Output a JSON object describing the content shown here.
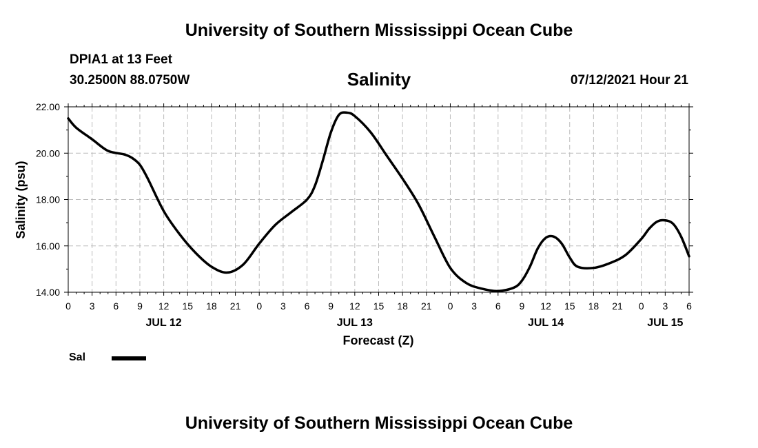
{
  "header": {
    "title": "University of Southern Mississippi Ocean Cube",
    "station": "DPIA1 at 13 Feet",
    "coordinates": "30.2500N  88.0750W",
    "datetime": "07/12/2021 Hour 21"
  },
  "footer": {
    "title": "University of Southern Mississippi Ocean Cube"
  },
  "legend": {
    "label": "Sal",
    "color": "#000000"
  },
  "chart_data": {
    "type": "line",
    "title": "Salinity",
    "xlabel": "Forecast (Z)",
    "ylabel": "Salinity (psu)",
    "ylim": [
      14.0,
      22.0
    ],
    "yticks": [
      "14.00",
      "16.00",
      "18.00",
      "20.00",
      "22.00"
    ],
    "xticks": [
      "0",
      "3",
      "6",
      "9",
      "12",
      "15",
      "18",
      "21",
      "0",
      "3",
      "6",
      "9",
      "12",
      "15",
      "18",
      "21",
      "0",
      "3",
      "6",
      "9",
      "12",
      "15",
      "18",
      "21",
      "0",
      "3",
      "6"
    ],
    "date_labels": [
      {
        "label": "JUL 12",
        "tick_index": 4
      },
      {
        "label": "JUL 13",
        "tick_index": 12
      },
      {
        "label": "JUL 14",
        "tick_index": 20
      },
      {
        "label": "JUL 15",
        "tick_index": 25
      }
    ],
    "grid": true,
    "legend_position": "bottom-left",
    "series": [
      {
        "name": "Sal",
        "color": "#000000",
        "points": [
          [
            "JUL 12 00Z",
            21.5
          ],
          [
            "JUL 12 01Z",
            21.1
          ],
          [
            "JUL 12 03Z",
            20.6
          ],
          [
            "JUL 12 05Z",
            20.1
          ],
          [
            "JUL 12 07Z",
            19.95
          ],
          [
            "JUL 12 08Z",
            19.8
          ],
          [
            "JUL 12 09Z",
            19.5
          ],
          [
            "JUL 12 10Z",
            18.9
          ],
          [
            "JUL 12 12Z",
            17.5
          ],
          [
            "JUL 12 14Z",
            16.5
          ],
          [
            "JUL 12 16Z",
            15.7
          ],
          [
            "JUL 12 18Z",
            15.1
          ],
          [
            "JUL 12 20Z",
            14.85
          ],
          [
            "JUL 12 22Z",
            15.2
          ],
          [
            "JUL 13 00Z",
            16.1
          ],
          [
            "JUL 13 02Z",
            16.9
          ],
          [
            "JUL 13 04Z",
            17.45
          ],
          [
            "JUL 13 06Z",
            18.0
          ],
          [
            "JUL 13 07Z",
            18.6
          ],
          [
            "JUL 13 08Z",
            19.7
          ],
          [
            "JUL 13 09Z",
            20.9
          ],
          [
            "JUL 13 10Z",
            21.65
          ],
          [
            "JUL 13 11Z",
            21.75
          ],
          [
            "JUL 13 12Z",
            21.6
          ],
          [
            "JUL 13 14Z",
            20.9
          ],
          [
            "JUL 13 16Z",
            19.9
          ],
          [
            "JUL 13 18Z",
            18.9
          ],
          [
            "JUL 13 20Z",
            17.8
          ],
          [
            "JUL 13 22Z",
            16.4
          ],
          [
            "JUL 14 00Z",
            15.05
          ],
          [
            "JUL 14 02Z",
            14.4
          ],
          [
            "JUL 14 04Z",
            14.15
          ],
          [
            "JUL 14 06Z",
            14.05
          ],
          [
            "JUL 14 08Z",
            14.2
          ],
          [
            "JUL 14 09Z",
            14.5
          ],
          [
            "JUL 14 10Z",
            15.1
          ],
          [
            "JUL 14 11Z",
            15.9
          ],
          [
            "JUL 14 12Z",
            16.35
          ],
          [
            "JUL 14 13Z",
            16.4
          ],
          [
            "JUL 14 14Z",
            16.1
          ],
          [
            "JUL 14 15Z",
            15.5
          ],
          [
            "JUL 14 16Z",
            15.1
          ],
          [
            "JUL 14 18Z",
            15.05
          ],
          [
            "JUL 14 20Z",
            15.25
          ],
          [
            "JUL 14 22Z",
            15.6
          ],
          [
            "JUL 15 00Z",
            16.3
          ],
          [
            "JUL 15 01Z",
            16.75
          ],
          [
            "JUL 15 02Z",
            17.05
          ],
          [
            "JUL 15 03Z",
            17.1
          ],
          [
            "JUL 15 04Z",
            16.95
          ],
          [
            "JUL 15 05Z",
            16.4
          ],
          [
            "JUL 15 06Z",
            15.55
          ]
        ]
      }
    ]
  }
}
